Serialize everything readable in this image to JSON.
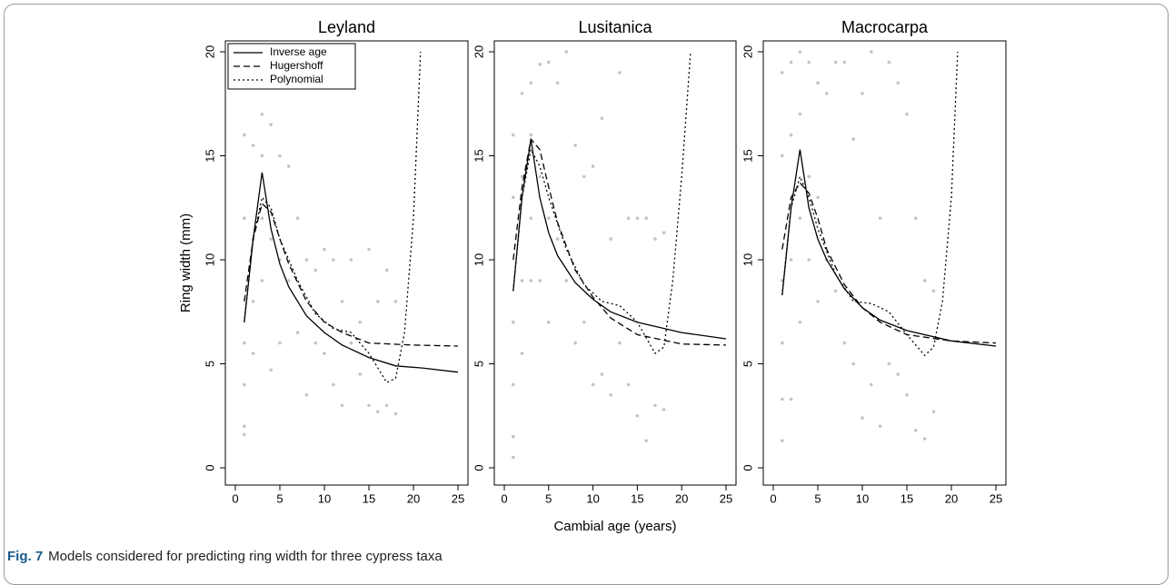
{
  "caption": {
    "label": "Fig. 7",
    "text": "Models considered for predicting ring width for three cypress taxa"
  },
  "chart_data": [
    {
      "type": "line",
      "title": "Leyland",
      "ylabel": "Ring width (mm)",
      "legend": "upper left",
      "xlim": [
        0,
        25
      ],
      "ylim": [
        0,
        20
      ],
      "xticks": [
        0,
        5,
        10,
        15,
        20,
        25
      ],
      "yticks": [
        0,
        5,
        10,
        15,
        20
      ],
      "points": {
        "color": "#c4c4c4",
        "x": [
          1,
          1,
          1,
          1,
          1,
          1,
          2,
          2,
          2,
          2,
          3,
          3,
          3,
          3,
          4,
          4,
          4,
          5,
          5,
          5,
          6,
          6,
          7,
          7,
          8,
          8,
          9,
          9,
          10,
          10,
          11,
          11,
          12,
          12,
          13,
          13,
          14,
          14,
          15,
          15,
          16,
          16,
          17,
          17,
          18,
          18
        ],
        "values": [
          16,
          12,
          6,
          4,
          2,
          1.6,
          15.5,
          11,
          8,
          5.5,
          17,
          15,
          12,
          9,
          16.5,
          11,
          4.7,
          15,
          10,
          6,
          14.5,
          9,
          12,
          6.5,
          10,
          3.5,
          9.5,
          6,
          10.5,
          5.5,
          10,
          4,
          8,
          3,
          10,
          6,
          7,
          4.5,
          10.5,
          3,
          8,
          2.7,
          9.5,
          3,
          8,
          2.6
        ]
      },
      "series": [
        {
          "name": "Inverse age",
          "dash": "solid",
          "color": "#000000",
          "x": [
            1,
            2,
            3,
            4,
            5,
            6,
            8,
            10,
            12,
            15,
            18,
            21,
            25
          ],
          "values": [
            7,
            11,
            14.2,
            11.5,
            9.8,
            8.7,
            7.3,
            6.5,
            5.9,
            5.3,
            4.9,
            4.8,
            4.6
          ]
        },
        {
          "name": "Hugershoff",
          "dash": "dashed",
          "color": "#000000",
          "x": [
            1,
            2,
            3,
            4,
            5,
            6,
            8,
            10,
            12,
            15,
            20,
            25
          ],
          "values": [
            8,
            11,
            12.7,
            12.3,
            11,
            9.8,
            8,
            7,
            6.5,
            6,
            5.9,
            5.85
          ]
        },
        {
          "name": "Polynomial",
          "dash": "dotted",
          "color": "#000000",
          "x": [
            1,
            2,
            3,
            4,
            5,
            7,
            9,
            11,
            13,
            15,
            17,
            18,
            19,
            20,
            20.8
          ],
          "values": [
            7,
            11,
            13,
            12.5,
            11,
            9,
            7.4,
            6.7,
            6.5,
            5.5,
            4.1,
            4.3,
            6.5,
            12,
            20
          ]
        }
      ]
    },
    {
      "type": "line",
      "title": "Lusitanica",
      "xlabel": "Cambial age (years)",
      "xlim": [
        0,
        25
      ],
      "ylim": [
        0,
        20
      ],
      "xticks": [
        0,
        5,
        10,
        15,
        20,
        25
      ],
      "yticks": [
        0,
        5,
        10,
        15,
        20
      ],
      "points": {
        "color": "#c4c4c4",
        "x": [
          1,
          1,
          1,
          1,
          1,
          1,
          2,
          2,
          2,
          2,
          3,
          3,
          3,
          3,
          4,
          4,
          4,
          5,
          5,
          5,
          6,
          6,
          7,
          7,
          8,
          8,
          9,
          9,
          10,
          10,
          11,
          11,
          12,
          12,
          13,
          13,
          14,
          14,
          15,
          15,
          16,
          16,
          17,
          17,
          18,
          18
        ],
        "values": [
          16,
          13,
          7,
          4,
          1.5,
          0.5,
          18,
          14,
          9,
          5.5,
          18.5,
          16,
          12,
          9,
          19.4,
          14,
          9,
          19.5,
          12,
          7,
          18.5,
          11,
          20,
          9,
          15.5,
          6,
          14,
          7,
          14.5,
          4,
          16.8,
          4.5,
          11,
          3.5,
          19,
          6,
          12,
          4,
          12,
          2.5,
          12,
          1.3,
          11,
          3,
          11.3,
          2.8
        ]
      },
      "series": [
        {
          "dash": "solid",
          "color": "#000000",
          "x": [
            1,
            2,
            3,
            4,
            5,
            6,
            8,
            10,
            12,
            15,
            20,
            25
          ],
          "values": [
            8.5,
            13,
            15.8,
            13,
            11.3,
            10.2,
            8.9,
            8.1,
            7.5,
            7,
            6.5,
            6.2
          ]
        },
        {
          "dash": "dashed",
          "color": "#000000",
          "x": [
            1,
            2,
            3,
            4,
            5,
            6,
            8,
            10,
            12,
            15,
            20,
            25
          ],
          "values": [
            10,
            13.5,
            15.8,
            15.3,
            13.5,
            11.8,
            9.5,
            8.2,
            7.2,
            6.4,
            5.95,
            5.9
          ]
        },
        {
          "dash": "dotted",
          "color": "#000000",
          "x": [
            1,
            2,
            3,
            4,
            5,
            7,
            9,
            11,
            13,
            15,
            17,
            18,
            19,
            20,
            21
          ],
          "values": [
            8.5,
            13,
            15.3,
            14.5,
            13,
            10.5,
            8.8,
            8,
            7.8,
            7,
            5.5,
            5.8,
            9,
            14,
            20
          ]
        }
      ]
    },
    {
      "type": "line",
      "title": "Macrocarpa",
      "xlim": [
        0,
        25
      ],
      "ylim": [
        0,
        20
      ],
      "xticks": [
        0,
        5,
        10,
        15,
        20,
        25
      ],
      "yticks": [
        0,
        5,
        10,
        15,
        20
      ],
      "points": {
        "color": "#c4c4c4",
        "x": [
          1,
          1,
          1,
          1,
          1,
          1,
          2,
          2,
          2,
          2,
          3,
          3,
          3,
          3,
          4,
          4,
          4,
          5,
          5,
          5,
          6,
          6,
          7,
          7,
          8,
          8,
          9,
          9,
          10,
          10,
          11,
          11,
          12,
          12,
          13,
          13,
          14,
          14,
          15,
          15,
          16,
          16,
          17,
          17,
          18,
          18
        ],
        "values": [
          19,
          15,
          9,
          6,
          3.3,
          1.3,
          19.5,
          16,
          10,
          3.3,
          20,
          17,
          12,
          7,
          19.5,
          14,
          10,
          18.5,
          13,
          8,
          18,
          10,
          19.5,
          8.5,
          19.5,
          6,
          15.8,
          5,
          18,
          2.4,
          20,
          4,
          12,
          2,
          19.5,
          5,
          18.5,
          4.5,
          17,
          3.5,
          12,
          1.8,
          9,
          1.4,
          8.5,
          2.7
        ]
      },
      "series": [
        {
          "dash": "solid",
          "color": "#000000",
          "x": [
            1,
            2,
            3,
            4,
            5,
            6,
            8,
            10,
            12,
            15,
            20,
            25
          ],
          "values": [
            8.3,
            12.5,
            15.3,
            12.5,
            11,
            10,
            8.6,
            7.7,
            7.1,
            6.6,
            6.1,
            5.85
          ]
        },
        {
          "dash": "dashed",
          "color": "#000000",
          "x": [
            1,
            2,
            3,
            4,
            5,
            6,
            8,
            10,
            12,
            15,
            20,
            25
          ],
          "values": [
            10.5,
            13,
            13.7,
            13.2,
            12,
            10.5,
            8.8,
            7.7,
            7,
            6.4,
            6.1,
            6
          ]
        },
        {
          "dash": "dotted",
          "color": "#000000",
          "x": [
            1,
            2,
            3,
            4,
            5,
            7,
            9,
            11,
            13,
            15,
            17,
            18,
            19,
            20,
            20.7
          ],
          "values": [
            8.3,
            12.5,
            14,
            13,
            11.5,
            9.3,
            8,
            7.9,
            7.5,
            6.4,
            5.4,
            5.8,
            8,
            13,
            20
          ]
        }
      ]
    }
  ]
}
